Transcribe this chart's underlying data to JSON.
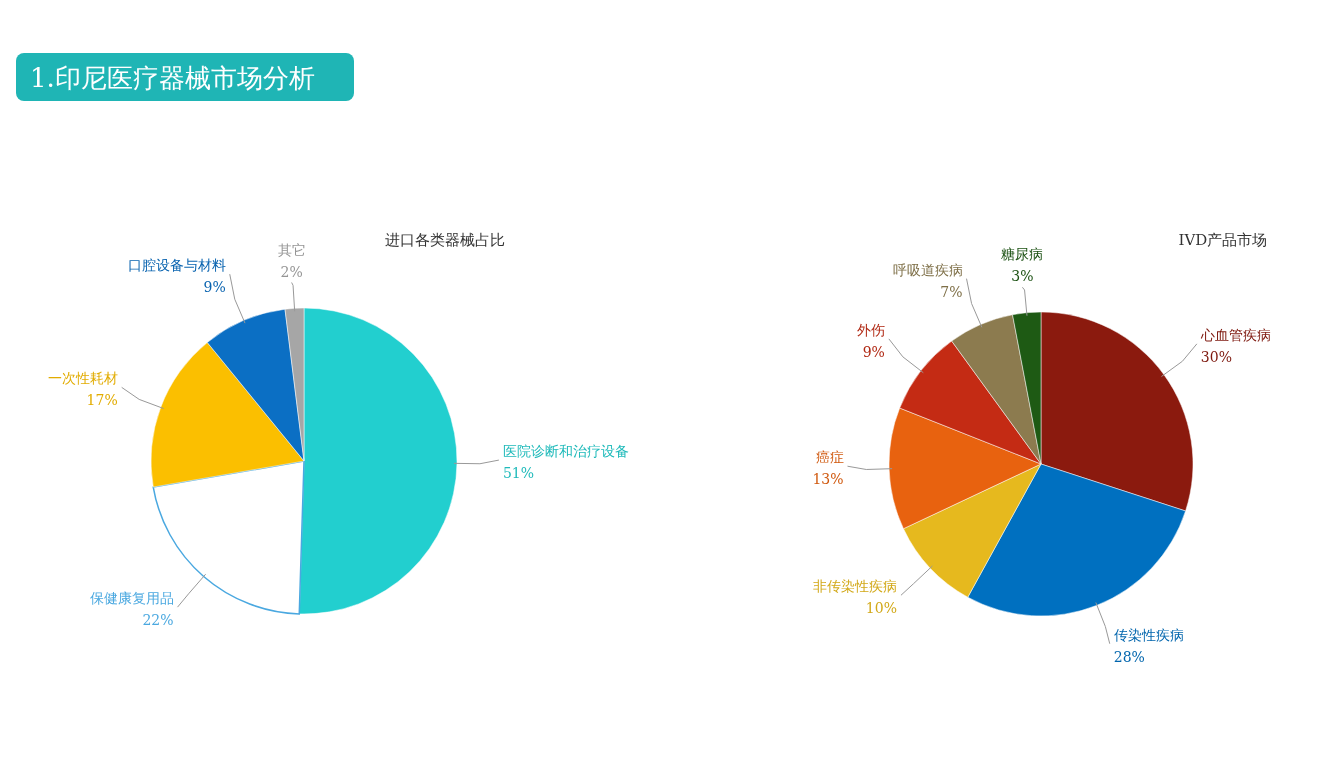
{
  "chart_data": [
    {
      "type": "other",
      "title": "1.印尼医疗器械市场分析"
    },
    {
      "type": "pie",
      "title": "进口各类器械占比",
      "categories": [
        "医院诊断和治疗设备",
        "保健康复用品",
        "一次性耗材",
        "口腔设备与材料",
        "其它"
      ],
      "values": [
        51,
        22,
        17,
        9,
        2
      ],
      "value_labels": [
        "51%",
        "22%",
        "17%",
        "9%",
        "2%"
      ],
      "colors": [
        "#22cfcf",
        "#ffffff",
        "#fbbf00",
        "#0b6fc4",
        "#a6a6a6"
      ]
    },
    {
      "type": "pie",
      "title": "IVD产品市场",
      "categories": [
        "心血管疾病",
        "传染性疾病",
        "非传染性疾病",
        "癌症",
        "外伤",
        "呼吸道疾病",
        "糖尿病"
      ],
      "values": [
        30,
        28,
        10,
        13,
        9,
        7,
        3
      ],
      "value_labels": [
        "30%",
        "28%",
        "10%",
        "13%",
        "9%",
        "7%",
        "3%"
      ],
      "colors": [
        "#8b1a0e",
        "#0070c0",
        "#e6b91e",
        "#e8620f",
        "#c42b14",
        "#8c7b4f",
        "#1e5a14"
      ]
    }
  ]
}
